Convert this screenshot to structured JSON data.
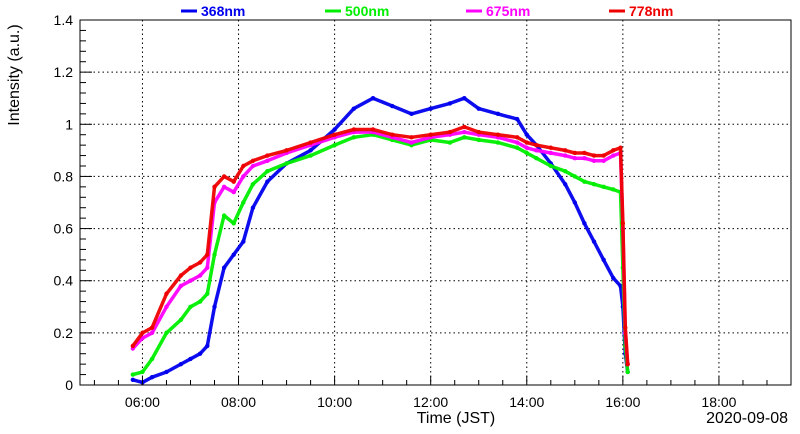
{
  "chart_data": {
    "type": "scatter",
    "title": "",
    "xlabel": "Time (JST)",
    "ylabel": "Intensity (a.u.)",
    "date_label": "2020-09-08",
    "x_unit": "hours (JST)",
    "xlim": [
      4.7,
      19.5
    ],
    "ylim": [
      0,
      1.4
    ],
    "x_ticks": [
      6,
      8,
      10,
      12,
      14,
      16,
      18
    ],
    "x_tick_labels": [
      "06:00",
      "08:00",
      "10:00",
      "12:00",
      "14:00",
      "16:00",
      "18:00"
    ],
    "y_ticks": [
      0,
      0.2,
      0.4,
      0.6,
      0.8,
      1.0,
      1.2,
      1.4
    ],
    "y_tick_labels": [
      "0",
      "0.2",
      "0.4",
      "0.6",
      "0.8",
      "1",
      "1.2",
      "1.4"
    ],
    "grid": true,
    "legend_position": "top",
    "series": [
      {
        "name": "368nm",
        "color": "#0000ee",
        "x": [
          5.8,
          6.0,
          6.2,
          6.5,
          6.8,
          7.0,
          7.2,
          7.35,
          7.5,
          7.7,
          7.9,
          8.1,
          8.3,
          8.6,
          9.0,
          9.5,
          10.0,
          10.4,
          10.8,
          11.2,
          11.6,
          12.0,
          12.4,
          12.7,
          13.0,
          13.4,
          13.8,
          14.0,
          14.2,
          14.5,
          14.8,
          15.0,
          15.2,
          15.4,
          15.6,
          15.8,
          15.95,
          16.0,
          16.05,
          16.1
        ],
        "y": [
          0.02,
          0.01,
          0.03,
          0.05,
          0.08,
          0.1,
          0.12,
          0.15,
          0.3,
          0.45,
          0.5,
          0.55,
          0.68,
          0.78,
          0.85,
          0.9,
          0.98,
          1.06,
          1.1,
          1.07,
          1.04,
          1.06,
          1.08,
          1.1,
          1.06,
          1.04,
          1.02,
          0.96,
          0.92,
          0.85,
          0.77,
          0.7,
          0.62,
          0.55,
          0.48,
          0.41,
          0.38,
          0.3,
          0.12,
          0.05
        ]
      },
      {
        "name": "500nm",
        "color": "#00ee00",
        "x": [
          5.8,
          6.0,
          6.2,
          6.5,
          6.8,
          7.0,
          7.2,
          7.35,
          7.5,
          7.7,
          7.9,
          8.1,
          8.3,
          8.6,
          9.0,
          9.5,
          10.0,
          10.4,
          10.8,
          11.2,
          11.6,
          12.0,
          12.4,
          12.7,
          13.0,
          13.4,
          13.8,
          14.0,
          14.2,
          14.5,
          14.8,
          15.0,
          15.2,
          15.4,
          15.6,
          15.8,
          15.95,
          16.0,
          16.05,
          16.1
        ],
        "y": [
          0.04,
          0.05,
          0.1,
          0.2,
          0.25,
          0.3,
          0.32,
          0.35,
          0.5,
          0.65,
          0.62,
          0.7,
          0.77,
          0.82,
          0.85,
          0.88,
          0.92,
          0.95,
          0.96,
          0.94,
          0.92,
          0.94,
          0.93,
          0.95,
          0.94,
          0.93,
          0.91,
          0.89,
          0.87,
          0.84,
          0.82,
          0.8,
          0.78,
          0.77,
          0.76,
          0.75,
          0.74,
          0.45,
          0.15,
          0.05
        ]
      },
      {
        "name": "675nm",
        "color": "#ff00ff",
        "x": [
          5.8,
          6.0,
          6.2,
          6.5,
          6.8,
          7.0,
          7.2,
          7.35,
          7.5,
          7.7,
          7.9,
          8.1,
          8.3,
          8.6,
          9.0,
          9.5,
          10.0,
          10.4,
          10.8,
          11.2,
          11.6,
          12.0,
          12.4,
          12.7,
          13.0,
          13.4,
          13.8,
          14.0,
          14.2,
          14.5,
          14.8,
          15.0,
          15.2,
          15.4,
          15.6,
          15.8,
          15.95,
          16.0,
          16.05,
          16.1
        ],
        "y": [
          0.14,
          0.18,
          0.2,
          0.3,
          0.38,
          0.4,
          0.42,
          0.45,
          0.7,
          0.76,
          0.74,
          0.8,
          0.84,
          0.86,
          0.89,
          0.92,
          0.95,
          0.97,
          0.97,
          0.95,
          0.93,
          0.95,
          0.96,
          0.97,
          0.96,
          0.95,
          0.93,
          0.91,
          0.9,
          0.89,
          0.88,
          0.87,
          0.87,
          0.86,
          0.86,
          0.88,
          0.89,
          0.6,
          0.2,
          0.08
        ]
      },
      {
        "name": "778nm",
        "color": "#ee0000",
        "x": [
          5.8,
          6.0,
          6.2,
          6.5,
          6.8,
          7.0,
          7.2,
          7.35,
          7.5,
          7.7,
          7.9,
          8.1,
          8.3,
          8.6,
          9.0,
          9.5,
          10.0,
          10.4,
          10.8,
          11.2,
          11.6,
          12.0,
          12.4,
          12.7,
          13.0,
          13.4,
          13.8,
          14.0,
          14.2,
          14.5,
          14.8,
          15.0,
          15.2,
          15.4,
          15.6,
          15.8,
          15.95,
          16.0,
          16.05,
          16.1
        ],
        "y": [
          0.15,
          0.2,
          0.22,
          0.35,
          0.42,
          0.45,
          0.47,
          0.5,
          0.76,
          0.8,
          0.78,
          0.84,
          0.86,
          0.88,
          0.9,
          0.93,
          0.96,
          0.98,
          0.98,
          0.96,
          0.95,
          0.96,
          0.97,
          0.99,
          0.97,
          0.96,
          0.95,
          0.93,
          0.92,
          0.91,
          0.9,
          0.89,
          0.89,
          0.88,
          0.88,
          0.9,
          0.91,
          0.62,
          0.22,
          0.08
        ]
      }
    ]
  }
}
